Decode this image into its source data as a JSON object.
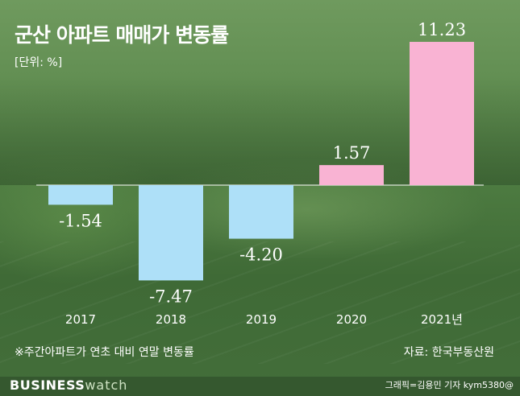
{
  "header": {
    "title": "군산 아파트 매매가 변동률",
    "unit": "[단위: %]"
  },
  "footer": {
    "note": "※주간아파트가 연초 대비 연말 변동률",
    "source": "자료: 한국부동산원",
    "brand_bold": "BUSINESS",
    "brand_light": "watch",
    "credit": "그래픽=김용민 기자 kym5380@"
  },
  "colors": {
    "positive": "#f9b3d3",
    "negative": "#aee0f8",
    "baseline": "#ffffff"
  },
  "chart_data": {
    "type": "bar",
    "title": "군산 아파트 매매가 변동률",
    "xlabel": "",
    "ylabel": "",
    "unit": "%",
    "categories": [
      "2017",
      "2018",
      "2019",
      "2020",
      "2021년"
    ],
    "values": [
      -1.54,
      -7.47,
      -4.2,
      1.57,
      11.23
    ],
    "value_labels": [
      "-1.54",
      "-7.47",
      "-4.20",
      "1.57",
      "11.23"
    ],
    "ylim": [
      -8.5,
      12.5
    ],
    "grid": false,
    "legend": "none"
  }
}
